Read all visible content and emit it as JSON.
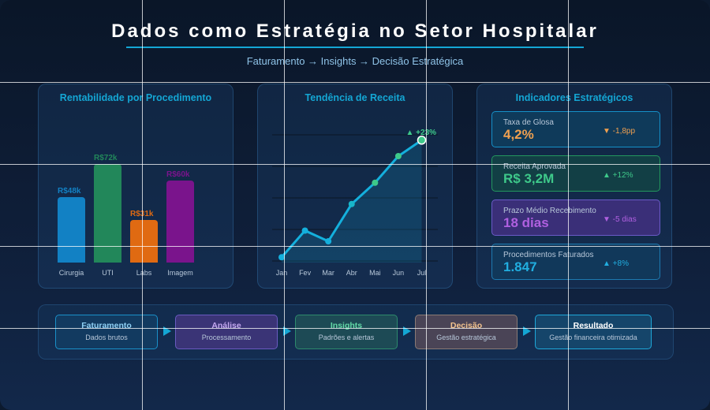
{
  "header": {
    "title": "Dados como Estratégia no Setor Hospitalar",
    "subtitle": "Faturamento → Insights → Decisão Estratégica"
  },
  "panels": {
    "bars_title": "Rentabilidade por Procedimento",
    "line_title": "Tendência de Receita",
    "kpi_title": "Indicadores Estratégicos"
  },
  "chart_data": [
    {
      "type": "bar",
      "title": "Rentabilidade por Procedimento",
      "categories": [
        "Cirurgia",
        "UTI",
        "Labs",
        "Imagem"
      ],
      "values": [
        48,
        72,
        31,
        60
      ],
      "labels": [
        "R$48k",
        "R$72k",
        "R$31k",
        "R$60k"
      ],
      "colors": [
        "#1281c4",
        "#22875a",
        "#e06a12",
        "#7a148c"
      ]
    },
    {
      "type": "line",
      "title": "Tendência de Receita",
      "categories": [
        "Jan",
        "Fev",
        "Mar",
        "Abr",
        "Mai",
        "Jun",
        "Jul"
      ],
      "values": [
        0,
        25,
        15,
        50,
        70,
        95,
        110
      ],
      "annotation": "▲ +23%",
      "grid": true
    }
  ],
  "kpis": [
    {
      "label": "Taxa de Glosa",
      "value": "4,2%",
      "delta": "▼ -1,8pp",
      "color": "#f0a050",
      "bg": "#0f3a5a",
      "border": "#1590c8"
    },
    {
      "label": "Receita Aprovada",
      "value": "R$ 3,2M",
      "delta": "▲ +12%",
      "color": "#3ec98a",
      "bg": "#123f45",
      "border": "#23985e"
    },
    {
      "label": "Prazo Médio Recebimento",
      "value": "18 dias",
      "delta": "▼ -5 dias",
      "color": "#b060e0",
      "bg": "#3a2f78",
      "border": "#6b5ac8"
    },
    {
      "label": "Procedimentos Faturados",
      "value": "1.847",
      "delta": "▲ +8%",
      "color": "#21aee0",
      "bg": "#11385a",
      "border": "#1d7ab0"
    }
  ],
  "flow": [
    {
      "title": "Faturamento",
      "desc": "Dados brutos",
      "title_color": "#8fd1f5",
      "bg": "#123a60",
      "border": "#1a90c8"
    },
    {
      "title": "Análise",
      "desc": "Processamento",
      "title_color": "#c4a8f0",
      "bg": "#3a3476",
      "border": "#6a5ac0"
    },
    {
      "title": "Insights",
      "desc": "Padrões e alertas",
      "title_color": "#62d8a6",
      "bg": "#1d4a55",
      "border": "#2d8a6c"
    },
    {
      "title": "Decisão",
      "desc": "Gestão estratégica",
      "title_color": "#f3c38e",
      "bg": "#4a4456",
      "border": "#8a7a74"
    },
    {
      "title": "Resultado",
      "desc": "Gestão financeira otimizada",
      "title_color": "#ffffff",
      "bg": "#15456a",
      "border": "#1ea7d8"
    }
  ]
}
